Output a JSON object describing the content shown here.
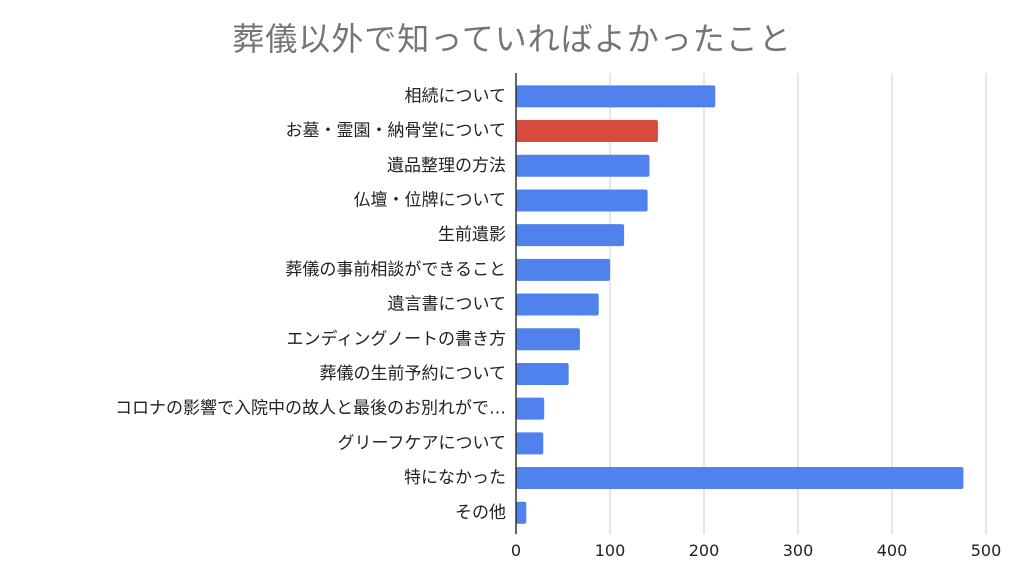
{
  "chart_data": {
    "type": "bar",
    "orientation": "horizontal",
    "title": "葬儀以外で知っていればよかったこと",
    "categories": [
      "相続について",
      "お墓・霊園・納骨堂について",
      "遺品整理の方法",
      "仏壇・位牌について",
      "生前遺影",
      "葬儀の事前相談ができること",
      "遺言書について",
      "エンディングノートの書き方",
      "葬儀の生前予約について",
      "コロナの影響で入院中の故人と最後のお別れがで…",
      "グリーフケアについて",
      "特になかった",
      "その他"
    ],
    "values": [
      212,
      151,
      142,
      140,
      115,
      100,
      88,
      68,
      56,
      30,
      29,
      476,
      11
    ],
    "bar_colors": [
      "#4f82ec",
      "#d9493c",
      "#4f82ec",
      "#4f82ec",
      "#4f82ec",
      "#4f82ec",
      "#4f82ec",
      "#4f82ec",
      "#4f82ec",
      "#4f82ec",
      "#4f82ec",
      "#4f82ec",
      "#4f82ec"
    ],
    "xlim": [
      0,
      500
    ],
    "xticks": [
      0,
      100,
      200,
      300,
      400,
      500
    ],
    "xlabel": "",
    "ylabel": "",
    "grid": "vertical",
    "grid_color": "#cccccc",
    "axis_color": "#333333"
  }
}
